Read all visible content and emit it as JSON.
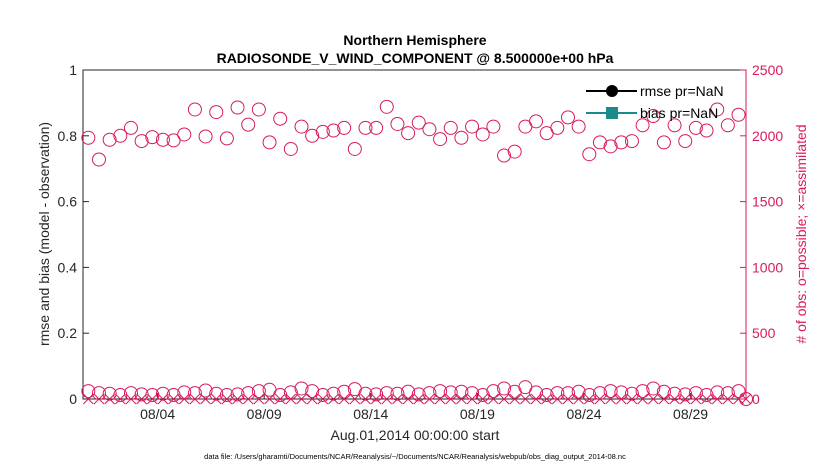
{
  "chart_data": {
    "type": "scatter",
    "title_line1": "Northern Hemisphere",
    "title_line2": "RADIOSONDE_V_WIND_COMPONENT @ 8.500000e+00 hPa",
    "xlabel": "Aug.01,2014 00:00:00 start",
    "ylabel_left": "rmse and bias (model - observation)",
    "ylabel_right": "# of obs: o=possible; ×=assimilated",
    "footnote": "data file: /Users/gharamti/Documents/NCAR/Reanalysis/~/Documents/NCAR/Reanalysis/webpub/obs_diag_output_2014-08.nc",
    "ylim_left": [
      0,
      1
    ],
    "ylim_right": [
      0,
      2500
    ],
    "xlim": [
      0.5,
      31.6
    ],
    "y_ticks_left": [
      {
        "v": 0,
        "label": "0"
      },
      {
        "v": 0.2,
        "label": "0.2"
      },
      {
        "v": 0.4,
        "label": "0.4"
      },
      {
        "v": 0.6,
        "label": "0.6"
      },
      {
        "v": 0.8,
        "label": "0.8"
      },
      {
        "v": 1,
        "label": "1"
      }
    ],
    "y_ticks_right": [
      {
        "v": 0,
        "label": "0"
      },
      {
        "v": 500,
        "label": "500"
      },
      {
        "v": 1000,
        "label": "1000"
      },
      {
        "v": 1500,
        "label": "1500"
      },
      {
        "v": 2000,
        "label": "2000"
      },
      {
        "v": 2500,
        "label": "2500"
      }
    ],
    "x_ticks": [
      {
        "v": 4,
        "label": "08/04"
      },
      {
        "v": 9,
        "label": "08/09"
      },
      {
        "v": 14,
        "label": "08/14"
      },
      {
        "v": 19,
        "label": "08/19"
      },
      {
        "v": 24,
        "label": "08/24"
      },
      {
        "v": 29,
        "label": "08/29"
      }
    ],
    "legend": [
      {
        "label": "rmse pr=NaN",
        "color": "#000000",
        "marker": "circle"
      },
      {
        "label": "bias pr=NaN",
        "color": "#1a8a8a",
        "marker": "square"
      }
    ],
    "series": [
      {
        "name": "possible",
        "marker": "o",
        "color": "#d81b60",
        "x": [
          0.75,
          1.25,
          1.75,
          2.25,
          2.75,
          3.25,
          3.75,
          4.25,
          4.75,
          5.25,
          5.75,
          6.25,
          6.75,
          7.25,
          7.75,
          8.25,
          8.75,
          9.25,
          9.75,
          10.25,
          10.75,
          11.25,
          11.75,
          12.25,
          12.75,
          13.25,
          13.75,
          14.25,
          14.75,
          15.25,
          15.75,
          16.25,
          16.75,
          17.25,
          17.75,
          18.25,
          18.75,
          19.25,
          19.75,
          20.25,
          20.75,
          21.25,
          21.75,
          22.25,
          22.75,
          23.25,
          23.75,
          24.25,
          24.75,
          25.25,
          25.75,
          26.25,
          26.75,
          27.25,
          27.75,
          28.25,
          28.75,
          29.25,
          29.75,
          30.25,
          30.75,
          31.25
        ],
        "y": [
          1985,
          1820,
          1970,
          2000,
          2060,
          1960,
          1990,
          1970,
          1965,
          2010,
          2200,
          1995,
          2180,
          1980,
          2215,
          2085,
          2200,
          1950,
          2130,
          1900,
          2070,
          2000,
          2030,
          2040,
          2060,
          1900,
          2060,
          2060,
          2220,
          2090,
          2020,
          2100,
          2050,
          1975,
          2060,
          1985,
          2070,
          2010,
          2070,
          1850,
          1880,
          2070,
          2110,
          2020,
          2060,
          2140,
          2070,
          1860,
          1950,
          1920,
          1950,
          1960,
          2080,
          2150,
          1950,
          2080,
          1960,
          2060,
          2040,
          2200,
          2080,
          2160
        ]
      },
      {
        "name": "assimilated",
        "marker": "x",
        "color": "#d81b60",
        "x": [
          0.75,
          1.25,
          1.75,
          2.25,
          2.75,
          3.25,
          3.75,
          4.25,
          4.75,
          5.25,
          5.75,
          6.25,
          6.75,
          7.25,
          7.75,
          8.25,
          8.75,
          9.25,
          9.75,
          10.25,
          10.75,
          11.25,
          11.75,
          12.25,
          12.75,
          13.25,
          13.75,
          14.25,
          14.75,
          15.25,
          15.75,
          16.25,
          16.75,
          17.25,
          17.75,
          18.25,
          18.75,
          19.25,
          19.75,
          20.25,
          20.75,
          21.25,
          21.75,
          22.25,
          22.75,
          23.25,
          23.75,
          24.25,
          24.75,
          25.25,
          25.75,
          26.25,
          26.75,
          27.25,
          27.75,
          28.25,
          28.75,
          29.25,
          29.75,
          30.25,
          30.75,
          31.25,
          31.6
        ],
        "y": [
          0,
          0,
          0,
          0,
          0,
          0,
          0,
          0,
          0,
          0,
          0,
          0,
          0,
          0,
          0,
          0,
          0,
          0,
          0,
          0,
          0,
          0,
          0,
          0,
          0,
          0,
          0,
          0,
          0,
          0,
          0,
          0,
          0,
          0,
          0,
          0,
          0,
          0,
          0,
          0,
          0,
          0,
          0,
          0,
          0,
          0,
          0,
          0,
          0,
          0,
          0,
          0,
          0,
          0,
          0,
          0,
          0,
          0,
          0,
          0,
          0,
          0,
          0
        ]
      },
      {
        "name": "possible-low",
        "marker": "o",
        "color": "#d81b60",
        "x": [
          0.75,
          1.25,
          1.75,
          2.25,
          2.75,
          3.25,
          3.75,
          4.25,
          4.75,
          5.25,
          5.75,
          6.25,
          6.75,
          7.25,
          7.75,
          8.25,
          8.75,
          9.25,
          9.75,
          10.25,
          10.75,
          11.25,
          11.75,
          12.25,
          12.75,
          13.25,
          13.75,
          14.25,
          14.75,
          15.25,
          15.75,
          16.25,
          16.75,
          17.25,
          17.75,
          18.25,
          18.75,
          19.25,
          19.75,
          20.25,
          20.75,
          21.25,
          21.75,
          22.25,
          22.75,
          23.25,
          23.75,
          24.25,
          24.75,
          25.25,
          25.75,
          26.25,
          26.75,
          27.25,
          27.75,
          28.25,
          28.75,
          29.25,
          29.75,
          30.25,
          30.75,
          31.25,
          31.6
        ],
        "y": [
          60,
          45,
          40,
          30,
          45,
          35,
          30,
          40,
          30,
          50,
          45,
          65,
          40,
          30,
          35,
          45,
          60,
          70,
          30,
          50,
          80,
          60,
          30,
          40,
          55,
          75,
          40,
          35,
          45,
          40,
          55,
          35,
          45,
          60,
          50,
          55,
          45,
          30,
          60,
          80,
          55,
          90,
          50,
          30,
          45,
          45,
          55,
          30,
          45,
          60,
          50,
          40,
          60,
          80,
          55,
          40,
          35,
          45,
          30,
          50,
          45,
          60,
          0
        ]
      }
    ]
  }
}
